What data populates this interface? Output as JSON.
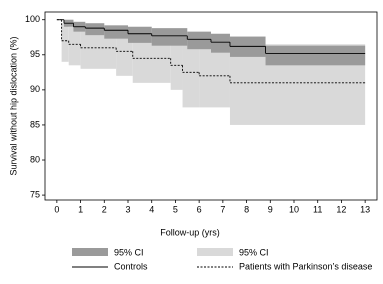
{
  "chart_data": {
    "type": "step",
    "xlabel": "Follow-up (yrs)",
    "ylabel": "Survival without hip dislocation (%)",
    "xlim": [
      -0.5,
      13.5
    ],
    "ylim": [
      74.3,
      101.1
    ],
    "xticks": [
      0,
      1,
      2,
      3,
      4,
      5,
      6,
      7,
      8,
      9,
      10,
      11,
      12,
      13
    ],
    "yticks": [
      75,
      80,
      85,
      90,
      95,
      100
    ],
    "series": [
      {
        "name": "Patients with Parkinson’s disease",
        "ci_name": "95% CI",
        "color": "#000000",
        "dash": true,
        "ci_color": "#d9d9d9",
        "x": [
          0,
          0.2,
          0.5,
          1,
          2.5,
          3.2,
          4.8,
          5.3,
          6,
          7.3,
          13
        ],
        "values": [
          100,
          97,
          96.5,
          96,
          95.5,
          94.5,
          93.5,
          92.5,
          92,
          91,
          91
        ],
        "lower": [
          100,
          94,
          93.5,
          93,
          92,
          91,
          90,
          87.5,
          87.5,
          85,
          85
        ],
        "upper": [
          100,
          99.5,
          99,
          98.5,
          98.5,
          98,
          97.5,
          97,
          96.8,
          96.5,
          96.5
        ]
      },
      {
        "name": "Controls",
        "ci_name": "95% CI",
        "color": "#000000",
        "dash": false,
        "ci_color": "#9a9a9a",
        "x": [
          0,
          0.3,
          0.7,
          1.2,
          2,
          3,
          4,
          5.5,
          6.5,
          7.3,
          8.8,
          13
        ],
        "values": [
          100,
          99.5,
          99,
          98.8,
          98.5,
          98,
          97.7,
          97.2,
          96.8,
          96.2,
          95.2,
          95.2
        ],
        "lower": [
          100,
          99,
          98.3,
          97.8,
          97.3,
          96.7,
          96.3,
          95.8,
          95.3,
          94.7,
          93.5,
          93.5
        ],
        "upper": [
          100,
          100,
          99.7,
          99.5,
          99.2,
          99,
          98.8,
          98.3,
          98,
          97.6,
          96.3,
          96.3
        ]
      }
    ]
  }
}
